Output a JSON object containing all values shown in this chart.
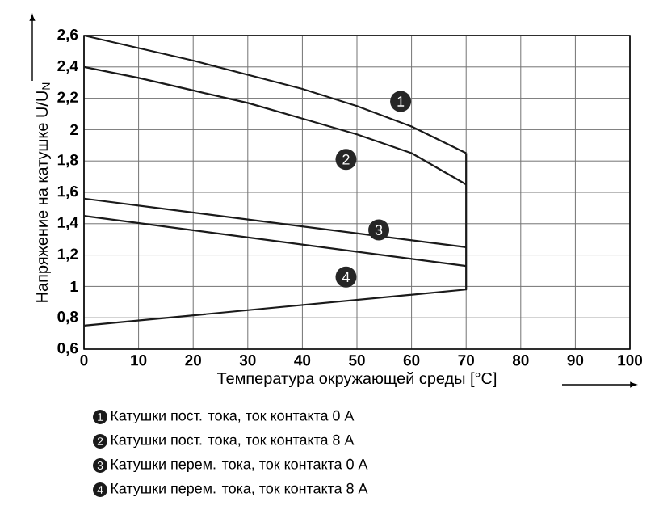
{
  "chart_data": {
    "type": "line",
    "xlabel": "Температура окружающей среды [°C]",
    "ylabel": "Напряжение на катушке U/U$_{N}$",
    "xlim": [
      0,
      100
    ],
    "xticks": [
      0,
      10,
      20,
      30,
      40,
      50,
      60,
      70,
      80,
      90,
      100
    ],
    "ylim": [
      0.6,
      2.6
    ],
    "yticks": [
      {
        "value": 0.6,
        "label": "0,6"
      },
      {
        "value": 0.8,
        "label": "0,8"
      },
      1,
      {
        "value": 1.2,
        "label": "1,2"
      },
      {
        "value": 1.4,
        "label": "1,4"
      },
      {
        "value": 1.6,
        "label": "1,6"
      },
      {
        "value": 1.8,
        "label": "1,8"
      },
      2,
      {
        "value": 2.2,
        "label": "2,2"
      },
      {
        "value": 2.4,
        "label": "2,4"
      },
      {
        "value": 2.6,
        "label": "2,6"
      }
    ],
    "grid": true,
    "legend": "bottom",
    "series": [
      {
        "name": "Катушки пост. тока, ток контакта 0 А",
        "color": "#1a1a1a",
        "x": [
          0,
          10,
          20,
          30,
          40,
          50,
          60,
          70
        ],
        "values": [
          2.6,
          2.52,
          2.44,
          2.35,
          2.26,
          2.15,
          2.02,
          1.85
        ]
      },
      {
        "name": "Катушки пост. тока, ток контакта 8 А",
        "color": "#1a1a1a",
        "x": [
          0,
          10,
          20,
          30,
          40,
          50,
          60,
          70
        ],
        "values": [
          2.4,
          2.33,
          2.25,
          2.17,
          2.07,
          1.97,
          1.85,
          1.65
        ]
      },
      {
        "name": "Катушки перем. тока, ток контакта 0 А",
        "color": "#1a1a1a",
        "x": [
          0,
          70
        ],
        "values": [
          1.56,
          1.25
        ]
      },
      {
        "name": "Катушки перем. тока, ток контакта 8 А",
        "color": "#1a1a1a",
        "x": [
          0,
          70
        ],
        "values": [
          1.45,
          1.13
        ]
      },
      {
        "color": "#1a1a1a",
        "x": [
          0,
          70,
          70
        ],
        "values": [
          0.75,
          0.98,
          1.85
        ]
      }
    ],
    "annotations": [
      {
        "text": "1",
        "x": 58,
        "y": 2.18
      },
      {
        "text": "2",
        "x": 48,
        "y": 1.81
      },
      {
        "text": "3",
        "x": 54,
        "y": 1.36
      },
      {
        "text": "4",
        "x": 48,
        "y": 1.06
      }
    ]
  }
}
